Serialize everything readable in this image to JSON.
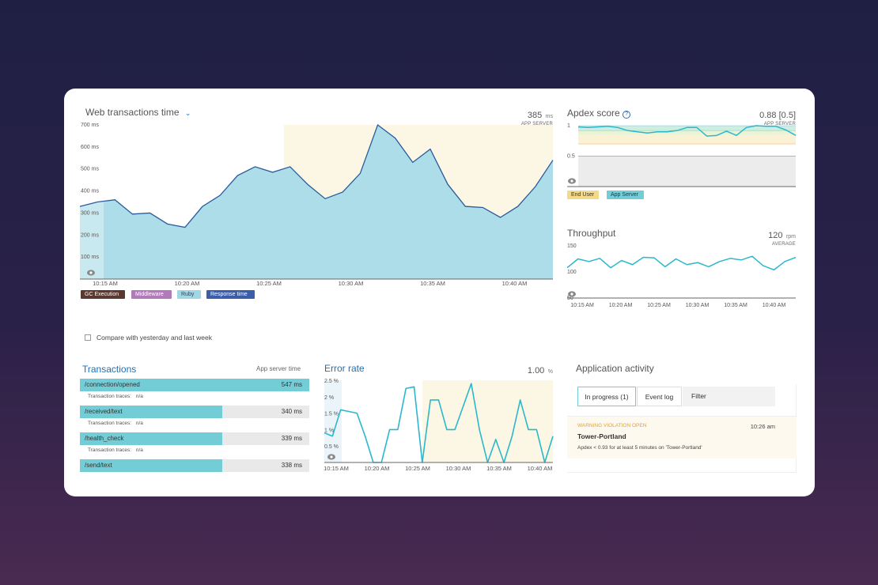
{
  "colors": {
    "area_fill": "#a8dbe8",
    "line": "#2a5a9a",
    "highlight": "#fbf7e4",
    "teal": "#2bb8cc",
    "bar": "#72cdd6"
  },
  "web_transactions": {
    "title": "Web transactions time",
    "dropdown_icon": "chevron-down-icon",
    "value": "385",
    "unit": "ms",
    "sub": "APP SERVER",
    "y_ticks": [
      "700 ms",
      "600 ms",
      "500 ms",
      "400 ms",
      "300 ms",
      "200 ms",
      "100 ms"
    ],
    "x_ticks": [
      "10:15 AM",
      "10:20 AM",
      "10:25 AM",
      "10:30 AM",
      "10:35 AM",
      "10:40 AM"
    ],
    "legend": [
      {
        "label": "GC Execution",
        "color": "#5a3a30"
      },
      {
        "label": "Middleware",
        "color": "#b07bb8"
      },
      {
        "label": "Ruby",
        "color": "#9fd8e4"
      },
      {
        "label": "Response time",
        "color": "#3a5ea8"
      }
    ],
    "chart_data": {
      "type": "area",
      "x": [
        "10:12",
        "10:14",
        "10:16",
        "10:18",
        "10:20",
        "10:21",
        "10:22",
        "10:23",
        "10:25",
        "10:26",
        "10:27",
        "10:28",
        "10:29",
        "10:30",
        "10:31",
        "10:32",
        "10:33",
        "10:34",
        "10:35",
        "10:36",
        "10:37",
        "10:38",
        "10:39",
        "10:40",
        "10:41",
        "10:42",
        "10:43",
        "10:44"
      ],
      "values": [
        330,
        350,
        360,
        295,
        300,
        250,
        235,
        330,
        380,
        470,
        510,
        485,
        510,
        430,
        365,
        395,
        480,
        700,
        640,
        530,
        590,
        430,
        330,
        325,
        280,
        330,
        420,
        540
      ],
      "ylim": [
        0,
        700
      ]
    }
  },
  "apdex": {
    "title": "Apdex score",
    "help_icon": "help-icon",
    "value": "0.88 [0.5]",
    "sub": "APP SERVER",
    "y_ticks": [
      "1",
      "0.5",
      "0"
    ],
    "legend": [
      {
        "label": "End User",
        "color": "#f3d98a"
      },
      {
        "label": "App Server",
        "color": "#72cdd6"
      }
    ],
    "chart_data": {
      "type": "line",
      "values": [
        0.98,
        0.97,
        0.98,
        0.99,
        0.97,
        0.92,
        0.9,
        0.88,
        0.9,
        0.9,
        0.92,
        0.97,
        0.97,
        0.83,
        0.84,
        0.91,
        0.84,
        0.97,
        1.0,
        0.99,
        0.99,
        0.93,
        0.84
      ],
      "ylim": [
        0,
        1
      ]
    }
  },
  "throughput": {
    "title": "Throughput",
    "value": "120",
    "unit": "rpm",
    "sub": "AVERAGE",
    "y_ticks": [
      "150",
      "100",
      "50"
    ],
    "x_ticks": [
      "10:15 AM",
      "10:20 AM",
      "10:25 AM",
      "10:30 AM",
      "10:35 AM",
      "10:40 AM"
    ],
    "chart_data": {
      "type": "line",
      "values": [
        108,
        125,
        120,
        126,
        108,
        122,
        114,
        128,
        127,
        110,
        125,
        114,
        118,
        110,
        120,
        126,
        123,
        130,
        112,
        104,
        120,
        128
      ],
      "ylim": [
        50,
        150
      ]
    }
  },
  "compare": {
    "label": "Compare with yesterday and last week"
  },
  "transactions": {
    "title": "Transactions",
    "column": "App server time",
    "trace_label": "Transaction traces:",
    "rows": [
      {
        "name": "/connection/opened",
        "value": "547 ms",
        "traces": "n/a",
        "pct": 1.0
      },
      {
        "name": "/received/text",
        "value": "340 ms",
        "traces": "n/a",
        "pct": 0.62
      },
      {
        "name": "/health_check",
        "value": "339 ms",
        "traces": "n/a",
        "pct": 0.62
      },
      {
        "name": "/send/text",
        "value": "338 ms",
        "pct": 0.62
      }
    ]
  },
  "error_rate": {
    "title": "Error rate",
    "value": "1.00",
    "unit": "%",
    "y_ticks": [
      "2.5 %",
      "2 %",
      "1.5 %",
      "1 %",
      "0.5 %"
    ],
    "x_ticks": [
      "10:15 AM",
      "10:20 AM",
      "10:25 AM",
      "10:30 AM",
      "10:35 AM",
      "10:40 AM"
    ],
    "chart_data": {
      "type": "line",
      "values": [
        0.9,
        0.8,
        1.6,
        1.55,
        1.5,
        0.8,
        0,
        0,
        1.0,
        1.0,
        2.25,
        2.3,
        0,
        1.9,
        1.9,
        1.0,
        1.0,
        1.7,
        2.4,
        1.0,
        0,
        0.7,
        0,
        0.8,
        1.9,
        1.0,
        1.0,
        0,
        0.8
      ],
      "ylim": [
        0,
        2.5
      ]
    }
  },
  "activity": {
    "title": "Application activity",
    "tabs": [
      "In progress (1)",
      "Event log",
      "Filter"
    ],
    "event": {
      "tag": "WARNING VIOLATION OPEN",
      "time": "10:26 am",
      "name": "Tower-Portland",
      "desc": "Apdex < 0.93 for at least 5 minutes on 'Tower-Portland'"
    }
  }
}
